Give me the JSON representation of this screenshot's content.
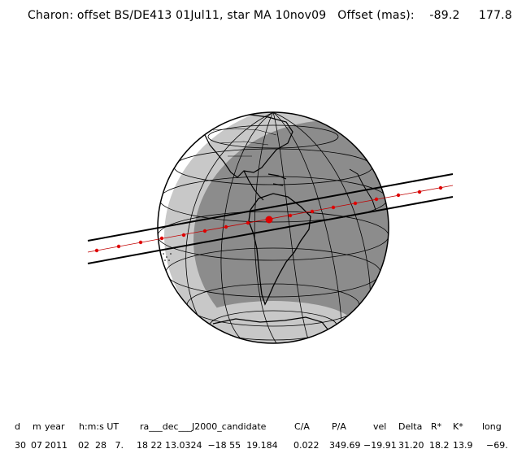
{
  "title": "Charon: offset BS/DE413 01Jul11, star MA 10nov09   Offset (mas):    -89.2     177.8",
  "table": {
    "headers": [
      "d",
      "m",
      "year",
      "h:m:s UT",
      "ra___dec___J2000_candidate",
      "C/A",
      "P/A",
      "vel",
      "Delta",
      "R*",
      "K*",
      "long"
    ],
    "values": [
      "30",
      "07",
      "2011",
      "02  28   7.",
      "18 22 13.0324  −18 55  19.184",
      "0.022",
      "349.69",
      "−19.91",
      "31.20",
      "18.2",
      "13.9",
      "−69."
    ]
  },
  "colors": {
    "night": "#8c8c8c",
    "twilight": "#c8c8c8",
    "day": "#ffffff",
    "track": "#e00000",
    "outline": "#000000"
  }
}
